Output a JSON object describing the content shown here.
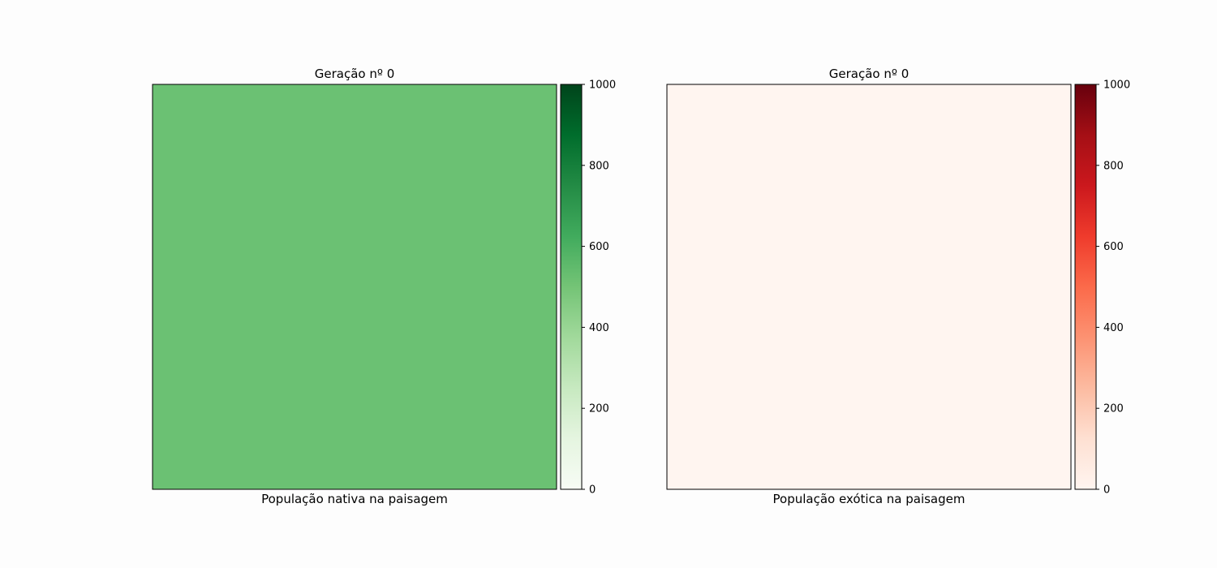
{
  "chart_data": [
    {
      "type": "heatmap",
      "title": "Geração nº 0",
      "xlabel": "População nativa na paisagem",
      "ylabel": "",
      "colormap": "Greens",
      "color_range": [
        0,
        1000
      ],
      "cell_value_approx": 500,
      "fill_color": "#6bc173",
      "colorbar": {
        "ticks": [
          0,
          200,
          400,
          600,
          800,
          1000
        ],
        "tick_labels": [
          "0",
          "200",
          "400",
          "600",
          "800",
          "1000"
        ],
        "gradient": [
          "#f7fcf5",
          "#e5f5e0",
          "#c7e9c0",
          "#a1d99b",
          "#74c476",
          "#41ab5d",
          "#238b45",
          "#006d2c",
          "#00441b"
        ]
      },
      "axes_ticks_shown": false
    },
    {
      "type": "heatmap",
      "title": "Geração nº 0",
      "xlabel": "População exótica na paisagem",
      "ylabel": "",
      "colormap": "Reds",
      "color_range": [
        0,
        1000
      ],
      "cell_value_approx": 0,
      "fill_color": "#fff5f0",
      "colorbar": {
        "ticks": [
          0,
          200,
          400,
          600,
          800,
          1000
        ],
        "tick_labels": [
          "0",
          "200",
          "400",
          "600",
          "800",
          "1000"
        ],
        "gradient": [
          "#fff5f0",
          "#fee0d2",
          "#fcbba1",
          "#fc9272",
          "#fb6a4a",
          "#ef3b2c",
          "#cb181d",
          "#a50f15",
          "#67000d"
        ]
      },
      "axes_ticks_shown": false
    }
  ]
}
